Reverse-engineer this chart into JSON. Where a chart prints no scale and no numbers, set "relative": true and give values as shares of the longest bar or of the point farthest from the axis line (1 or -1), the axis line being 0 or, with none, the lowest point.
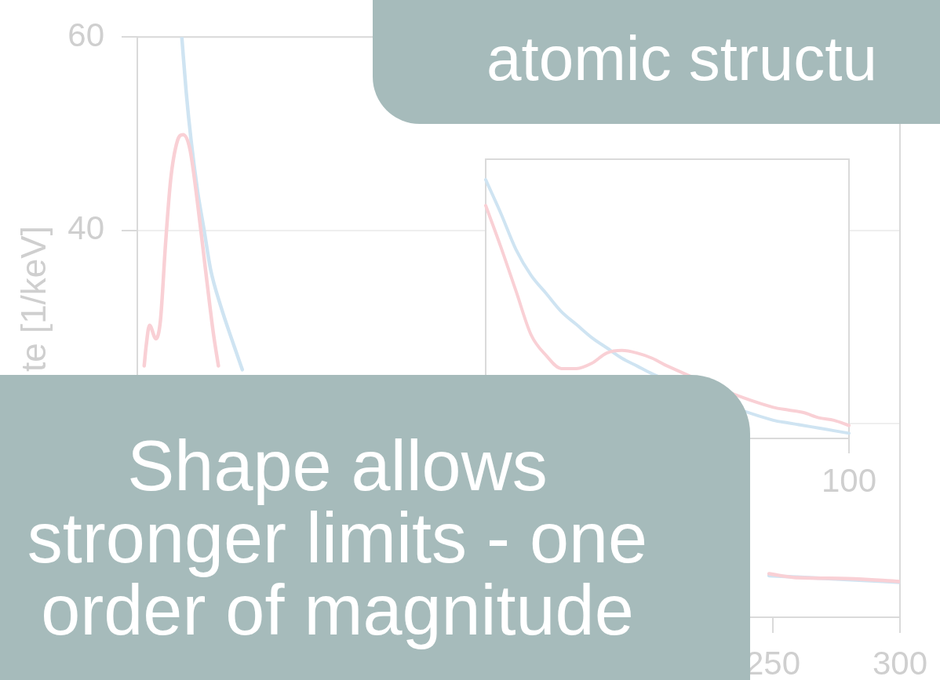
{
  "chart_data": [
    {
      "type": "line",
      "ylabel": "te [1/keV]",
      "xlim": [
        0,
        300
      ],
      "xticks": [
        250,
        300
      ],
      "ylim": [
        0,
        60
      ],
      "yticks": [
        {
          "value": 20,
          "label": null
        },
        40,
        60
      ],
      "grid": "y",
      "series": [
        {
          "color": "#cfe4f2",
          "x": [
            17.5,
            19.2,
            21.2,
            23.8,
            26.3,
            28.8,
            32.9,
            38,
            41.3,
            150,
            248.5,
            279.4,
            300
          ],
          "values": [
            60,
            54.4,
            49.2,
            43.9,
            40,
            36,
            32.1,
            28.1,
            25.6,
            null,
            4.3,
            3.9,
            3.6
          ]
        },
        {
          "color": "#f9d0d5",
          "x": [
            2.7,
            3.5,
            4.8,
            7.3,
            9.1,
            11.1,
            13.1,
            15.7,
            18,
            20.7,
            23.8,
            26.8,
            29.9,
            31.9,
            150,
            248.5,
            259.1,
            279.4,
            300
          ],
          "values": [
            26,
            28.1,
            30.2,
            28.8,
            30.7,
            38.6,
            45.2,
            49.2,
            49.9,
            48.4,
            42.6,
            36,
            29.4,
            26,
            null,
            4.5,
            4.1,
            4,
            3.7
          ]
        }
      ],
      "annotations": [
        "atomic structu",
        "Shape allows stronger limits - one order of magnitude"
      ]
    },
    {
      "type": "line",
      "relative": true,
      "categories": [
        null,
        null,
        null,
        null,
        null,
        null,
        null,
        null,
        null,
        null,
        null,
        null,
        null,
        null,
        null,
        null,
        null,
        null,
        null,
        null,
        null,
        null,
        null,
        null,
        null
      ],
      "series": [
        {
          "color": "#cfe4f2",
          "values": [
            1,
            0.87,
            0.73,
            0.63,
            0.56,
            0.49,
            0.44,
            0.39,
            0.35,
            0.31,
            0.28,
            0.25,
            null,
            null,
            null,
            null,
            null,
            null,
            null,
            0.07,
            0.06,
            0.05,
            0.04,
            0.03,
            0.02
          ]
        },
        {
          "color": "#f9d0d5",
          "values": [
            0.9,
            0.74,
            0.57,
            0.4,
            0.32,
            0.27,
            0.27,
            0.29,
            0.33,
            0.34,
            0.33,
            0.31,
            0.28,
            null,
            null,
            null,
            null,
            null,
            null,
            0.12,
            0.11,
            0.1,
            0.08,
            0.07,
            0.05
          ]
        }
      ],
      "annotations": [
        "100"
      ]
    }
  ]
}
